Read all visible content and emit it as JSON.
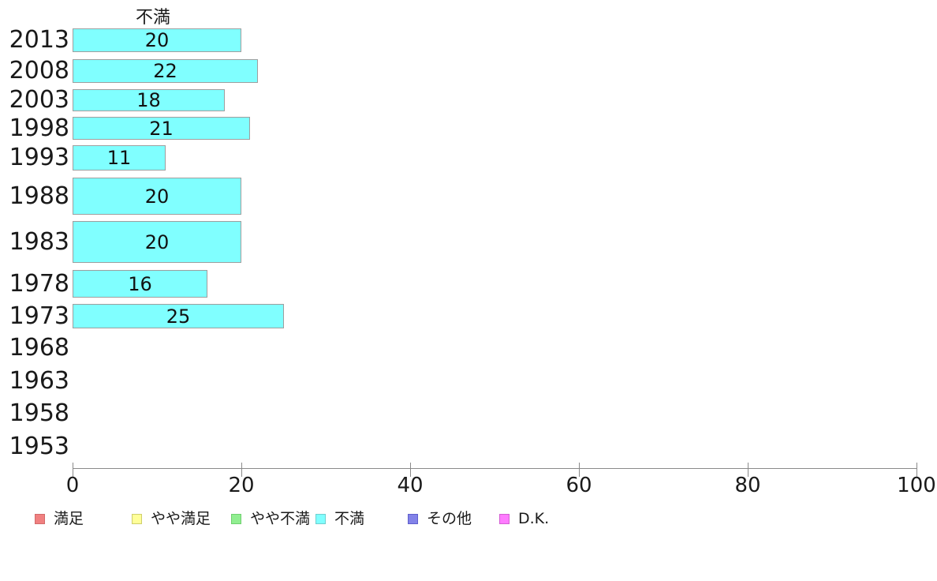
{
  "chart_data": {
    "type": "bar",
    "orientation": "horizontal",
    "title": "不満",
    "categories": [
      "2013",
      "2008",
      "2003",
      "1998",
      "1993",
      "1988",
      "1983",
      "1978",
      "1973",
      "1968",
      "1963",
      "1958",
      "1953"
    ],
    "values": [
      20,
      22,
      18,
      21,
      11,
      20,
      20,
      16,
      25,
      null,
      null,
      null,
      null
    ],
    "xlabel": "",
    "ylabel": "",
    "xlim": [
      0,
      100
    ],
    "x_ticks": [
      0,
      20,
      40,
      60,
      80,
      100
    ],
    "grid": "off",
    "bar_fill_color": "#80FFFF",
    "bar_border_color": "#9E9E9E",
    "axis_color": "#8A8A8A",
    "legend_position": "bottom",
    "legend": [
      {
        "label": "満足",
        "color": "#F08080",
        "border": "#D26A6A"
      },
      {
        "label": "やや満足",
        "color": "#FFFF99",
        "border": "#CFCF6B"
      },
      {
        "label": "やや不満",
        "color": "#90EE90",
        "border": "#6FCF6F"
      },
      {
        "label": "不満",
        "color": "#80FFFF",
        "border": "#6FCFCF"
      },
      {
        "label": "その他",
        "color": "#8282E8",
        "border": "#5F5FCC"
      },
      {
        "label": "D.K.",
        "color": "#FF7BFF",
        "border": "#D35FD3"
      }
    ]
  }
}
